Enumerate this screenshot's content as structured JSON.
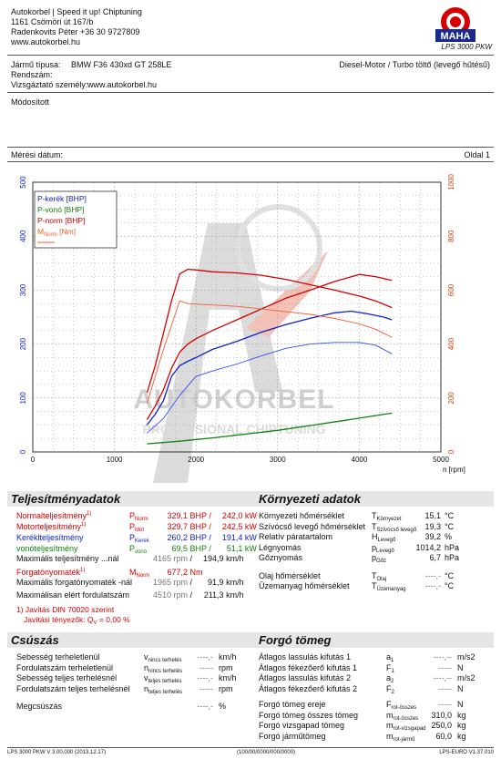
{
  "header": {
    "company": "Autokorbel | Speed it up! Chiptuning",
    "address": "1161 Csömöri út 167/b",
    "contact": "Radenkovits Péter +36 30 9727809",
    "web": "www.autokorbel.hu",
    "logo_text": "MAHA",
    "logo_ring": "Maschinenbau Haldenwang",
    "model": "LPS 3000 PKW"
  },
  "vehicle": {
    "type_label": "Jármű típusa:",
    "type_value": "BMW F36 430xd GT 258LE",
    "engine": "Diesel-Motor / Turbo töltő (levegő hűtésű)",
    "plate_label": "Rendszám:",
    "tester_label": "Vizsgáztató személy:",
    "tester_value": "www.autokorbel.hu",
    "modified": "Módosított",
    "date_label": "Mérési dátum:",
    "page": "Oldal 1"
  },
  "chart_data": {
    "type": "line",
    "xlabel": "n [rpm]",
    "xlim": [
      0,
      5000
    ],
    "ylim_left": [
      0,
      500
    ],
    "ylim_right": [
      0,
      1000
    ],
    "x_ticks": [
      "0",
      "1000",
      "2000",
      "3000",
      "4000",
      "5000"
    ],
    "y_ticks_left": [
      "0",
      "100",
      "200",
      "300",
      "400",
      "500"
    ],
    "y_ticks_right": [
      "0",
      "200",
      "400",
      "600",
      "800",
      "1000"
    ],
    "grid": true,
    "legend_position": "top-left",
    "legend": [
      "P-kerék [BHP]",
      "P-vonó [BHP]",
      "P-norm [BHP]",
      "M_Norm [Nm]"
    ],
    "series": [
      {
        "name": "P-kerék [BHP]",
        "axis": "left",
        "color": "#1020c8",
        "x": [
          1400,
          1500,
          1600,
          1700,
          1800,
          1900,
          2000,
          2200,
          2500,
          2800,
          3100,
          3400,
          3700,
          3900,
          4100,
          4300,
          4400
        ],
        "y": [
          50,
          70,
          95,
          140,
          160,
          168,
          175,
          190,
          205,
          222,
          236,
          248,
          258,
          261,
          256,
          250,
          245
        ]
      },
      {
        "name": "P-vonó [BHP]",
        "axis": "left",
        "color": "#108010",
        "x": [
          1400,
          1800,
          2200,
          2600,
          3000,
          3400,
          3800,
          4100,
          4400
        ],
        "y": [
          15,
          20,
          26,
          33,
          40,
          49,
          58,
          65,
          72
        ]
      },
      {
        "name": "P-norm [BHP]",
        "axis": "left",
        "color": "#d40000",
        "x": [
          1400,
          1500,
          1600,
          1700,
          1800,
          1900,
          2000,
          2200,
          2500,
          2800,
          3100,
          3400,
          3700,
          4000,
          4200,
          4400
        ],
        "y": [
          60,
          85,
          115,
          155,
          185,
          200,
          210,
          225,
          245,
          265,
          285,
          300,
          316,
          329,
          325,
          318
        ]
      },
      {
        "name": "M_Norm [Nm]",
        "axis": "right",
        "color": "#d40000",
        "x": [
          1400,
          1500,
          1600,
          1700,
          1800,
          1900,
          2000,
          2200,
          2500,
          2800,
          3100,
          3400,
          3700,
          4000,
          4200,
          4400
        ],
        "y": [
          220,
          320,
          440,
          560,
          660,
          677,
          675,
          668,
          664,
          655,
          640,
          620,
          600,
          578,
          560,
          535
        ]
      },
      {
        "name": "P-kerék (vékony)",
        "axis": "left",
        "color": "#3050f0",
        "x": [
          1400,
          1600,
          1800,
          2000,
          2200,
          2500,
          2800,
          3100,
          3400,
          3700,
          4000,
          4200,
          4400
        ],
        "y": [
          35,
          62,
          105,
          140,
          150,
          163,
          178,
          192,
          200,
          203,
          203,
          198,
          182
        ]
      },
      {
        "name": "M_Norm (vékony)",
        "axis": "right",
        "color": "#f06030",
        "x": [
          1400,
          1600,
          1800,
          1900,
          2000,
          2200,
          2500,
          2800,
          3100,
          3400,
          3700,
          4000,
          4200,
          4400
        ],
        "y": [
          180,
          380,
          560,
          550,
          548,
          545,
          540,
          530,
          520,
          510,
          495,
          475,
          455,
          425
        ]
      }
    ]
  },
  "perf": {
    "title": "Teljesítményadatok",
    "norm_label": "Normalteljesítmény",
    "norm_sym": "P",
    "norm_sub": "Norm",
    "norm_v1": "329,1",
    "norm_v2": "242,0",
    "motor_label": "Motorteljesítmény",
    "motor_sym": "P",
    "motor_sub": "Mot",
    "motor_v1": "329,7",
    "motor_v2": "242,5",
    "wheel_label": "Keréklteljesítmény",
    "wheel_sym": "P",
    "wheel_sub": "Kerek",
    "wheel_v1": "260,2",
    "wheel_v2": "191,4",
    "drag_label": "vonóteljesítmény",
    "drag_sym": "P",
    "drag_sub": "vonó",
    "drag_v1": "69,5",
    "drag_v2": "51,1",
    "unit_bhp": "BHP",
    "unit_kw": "kW",
    "slash": "/",
    "maxpow_label": "Maximális teljesítmény ...nál",
    "maxpow_rpm": "4165",
    "maxpow_kmh": "194,9",
    "unit_rpm": "rpm",
    "unit_kmh": "km/h",
    "torque_label": "Forgatónyomaték",
    "torque_sym": "M",
    "torque_sub": "Norm",
    "torque_val": "677,2",
    "torque_unit": "Nm",
    "maxtorque_label": "Maximális forgatónyomaték -nál",
    "maxtorque_rpm": "1965",
    "maxtorque_kmh": "91,9",
    "maxrpm_label": "Maximálisan elért fordulatszám",
    "maxrpm_rpm": "4510",
    "maxrpm_kmh": "211,3",
    "footnote": "1)",
    "correction_note": "1) Javítás DIN 70020 szerint",
    "correction_factor": "Javítási tényezők: Q",
    "correction_sub": "V",
    "correction_value": "=   0,00 %"
  },
  "env": {
    "title": "Környezeti adatok",
    "rows": [
      {
        "label": "Környezeti hőmérséklet",
        "sym": "T",
        "sub": "Környezet",
        "value": "15,1",
        "unit": "°C"
      },
      {
        "label": "Szívócső levegő hőmérséklet",
        "sym": "T",
        "sub": "Szívócső levegő",
        "value": "19,3",
        "unit": "°C"
      },
      {
        "label": "Relatív páratartalom",
        "sym": "H",
        "sub": "Levegő",
        "value": "39,2",
        "unit": "%"
      },
      {
        "label": "Légnyomás",
        "sym": "p",
        "sub": "Levegő",
        "value": "1014,2",
        "unit": "hPa"
      },
      {
        "label": "Gőznyomás",
        "sym": "p",
        "sub": "Gőz",
        "value": "6,7",
        "unit": "hPa"
      },
      {
        "label": "Olaj hőmérséklet",
        "sym": "T",
        "sub": "Olaj",
        "value": "----,-",
        "unit": "°C"
      },
      {
        "label": "Üzemanyag hőmérséklet",
        "sym": "T",
        "sub": "Üzemanyag",
        "value": "----,-",
        "unit": "°C"
      }
    ]
  },
  "slip": {
    "title": "Csúszás",
    "rows": [
      {
        "label": "Sebesség terheletlenül",
        "sym": "v",
        "sub": "nincs terhelés",
        "value": "----,-",
        "unit": "km/h"
      },
      {
        "label": "Fordulatszám terheletlenül",
        "sym": "n",
        "sub": "nincs terhelés",
        "value": "-----",
        "unit": "rpm"
      },
      {
        "label": "Sebesség teljes terhelésnél",
        "sym": "v",
        "sub": "teljes terhelés",
        "value": "----,-",
        "unit": "km/h"
      },
      {
        "label": "Fordulatszám teljes terhelésnél",
        "sym": "n",
        "sub": "teljes terhelés",
        "value": "-----",
        "unit": "rpm"
      },
      {
        "label": "Megcsúszás",
        "sym": "",
        "sub": "",
        "value": "----,-",
        "unit": "%"
      }
    ]
  },
  "mass": {
    "title": "Forgó tömeg",
    "rows": [
      {
        "label": "Átlagos lassulás kifutás 1",
        "sym": "a",
        "sub": "1",
        "value": "----,--",
        "unit": "m/s2"
      },
      {
        "label": "Átlagos fékezőerő kifutás 1",
        "sym": "F",
        "sub": "1",
        "value": "-----",
        "unit": "N"
      },
      {
        "label": "Átlagos lassulás kifutás 2",
        "sym": "a",
        "sub": "2",
        "value": "----,--",
        "unit": "m/s2"
      },
      {
        "label": "Átlagos fékezőerő kifutás 2",
        "sym": "F",
        "sub": "2",
        "value": "-----",
        "unit": "N"
      },
      {
        "label": "Forgó tömeg ereje",
        "sym": "F",
        "sub": "rot-összes",
        "value": "-----",
        "unit": "N"
      },
      {
        "label": "Forgó tömeg összes tömeg",
        "sym": "m",
        "sub": "rot-összes",
        "value": "310,0",
        "unit": "kg"
      },
      {
        "label": "Forgó vizsgapad tömeg",
        "sym": "m",
        "sub": "rot-vizsgapad",
        "value": "250,0",
        "unit": "kg"
      },
      {
        "label": "Forgó járműtömeg",
        "sym": "m",
        "sub": "rot-jármű",
        "value": "60,0",
        "unit": "kg"
      }
    ]
  },
  "footer": {
    "left": "LPS 3000 PKW V 3.00.000 (2013.12.17)",
    "center": "(100/00/0000/000/0000)",
    "right": "LPS-EURO V1.37.010"
  },
  "watermark": {
    "line1": "AUTOKORBEL",
    "line2": "PROFESSIONAL CHIPTUNING"
  },
  "colors": {
    "red": "#d40000",
    "blue": "#1020c8",
    "green": "#108010",
    "orange": "#f06030"
  }
}
